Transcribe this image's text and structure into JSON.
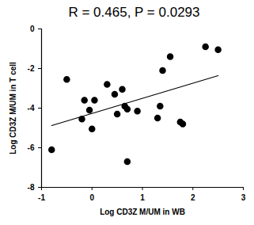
{
  "chart_data": {
    "type": "scatter",
    "title": "R = 0.465, P = 0.0293",
    "x_label": "Log CD3Z M/UM in WB",
    "y_label": "Log CD3Z M/UM in T cell",
    "x": [
      -0.8,
      -0.5,
      -0.2,
      -0.15,
      -0.05,
      0.0,
      0.05,
      0.3,
      0.45,
      0.5,
      0.6,
      0.65,
      0.7,
      0.7,
      0.9,
      1.3,
      1.35,
      1.4,
      1.55,
      1.75,
      1.8,
      2.25,
      2.5
    ],
    "values": [
      -6.1,
      -2.55,
      -4.55,
      -3.6,
      -4.1,
      -5.05,
      -3.6,
      -2.8,
      -3.3,
      -4.3,
      -3.05,
      -3.9,
      -4.05,
      -6.7,
      -4.15,
      -4.5,
      -3.9,
      -2.1,
      -1.4,
      -4.7,
      -4.8,
      -0.9,
      -1.05
    ],
    "color": "#000000",
    "marker": "circle",
    "xlim": [
      -1,
      3
    ],
    "xticks": [
      -1,
      0,
      1,
      2,
      3
    ],
    "ylim": [
      -8,
      0
    ],
    "yticks": [
      -8,
      -6,
      -4,
      -2,
      0
    ],
    "grid": false
  }
}
